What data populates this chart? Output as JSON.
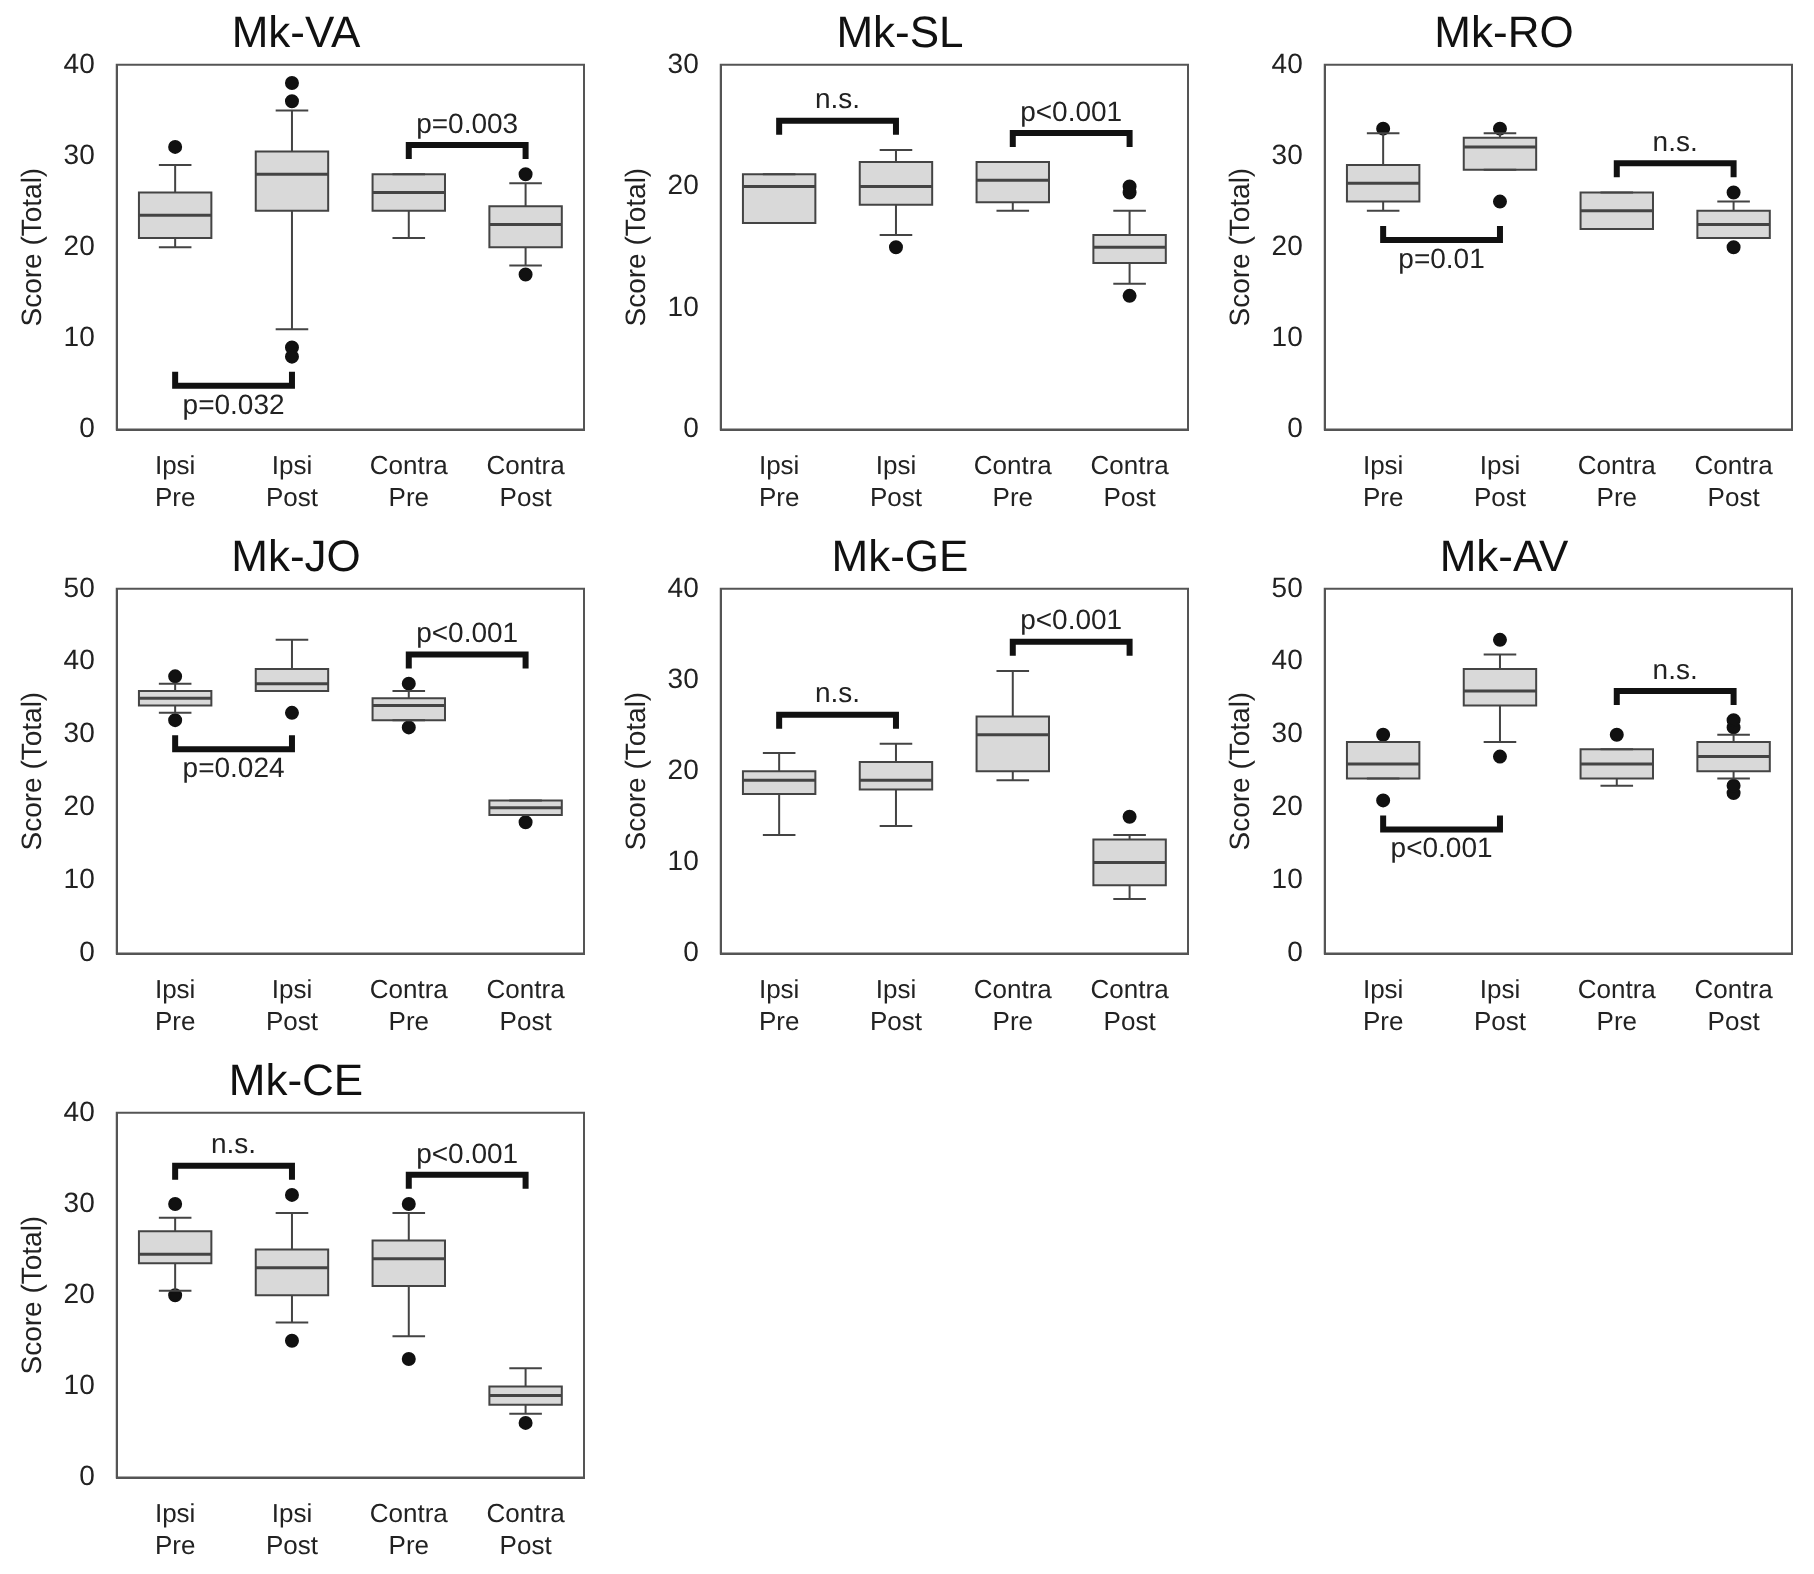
{
  "chart_data": [
    {
      "type": "box",
      "title": "Mk-VA",
      "ylabel": "Score (Total)",
      "categories": [
        "Ipsi Pre",
        "Ipsi Post",
        "Contra Pre",
        "Contra Post"
      ],
      "ylim": [
        0,
        40
      ],
      "yticks": [
        0,
        10,
        20,
        30,
        40
      ],
      "grid": false,
      "legend": false,
      "series": [
        {
          "color": "#d9d9d9",
          "boxes": [
            {
              "low": 20,
              "q1": 21,
              "median": 23.5,
              "q3": 26,
              "high": 29,
              "outliers": [
                31
              ]
            },
            {
              "low": 11,
              "q1": 24,
              "median": 28,
              "q3": 30.5,
              "high": 35,
              "outliers": [
                36,
                38,
                9,
                8
              ]
            },
            {
              "low": 21,
              "q1": 24,
              "median": 26,
              "q3": 28,
              "high": 28
            },
            {
              "low": 18,
              "q1": 20,
              "median": 22.5,
              "q3": 24.5,
              "high": 27,
              "outliers": [
                28,
                17
              ]
            }
          ]
        }
      ],
      "annotations": [
        "p=0.032",
        "p=0.003"
      ]
    },
    {
      "type": "box",
      "title": "Mk-SL",
      "ylabel": "Score (Total)",
      "categories": [
        "Ipsi Pre",
        "Ipsi Post",
        "Contra Pre",
        "Contra Post"
      ],
      "ylim": [
        0,
        30
      ],
      "yticks": [
        0,
        10,
        20,
        30
      ],
      "grid": false,
      "legend": false,
      "series": [
        {
          "color": "#d9d9d9",
          "boxes": [
            {
              "low": 17,
              "q1": 17,
              "median": 20,
              "q3": 21,
              "high": 21
            },
            {
              "low": 16,
              "q1": 18.5,
              "median": 20,
              "q3": 22,
              "high": 23,
              "outliers": [
                15
              ]
            },
            {
              "low": 18,
              "q1": 18.7,
              "median": 20.5,
              "q3": 22,
              "high": 22
            },
            {
              "low": 12,
              "q1": 13.7,
              "median": 15,
              "q3": 16,
              "high": 18,
              "outliers": [
                19.5,
                20,
                11
              ]
            }
          ]
        }
      ],
      "annotations": [
        "n.s.",
        "p<0.001"
      ]
    },
    {
      "type": "box",
      "title": "Mk-RO",
      "ylabel": "Score (Total)",
      "categories": [
        "Ipsi Pre",
        "Ipsi Post",
        "Contra Pre",
        "Contra Post"
      ],
      "ylim": [
        0,
        40
      ],
      "yticks": [
        0,
        10,
        20,
        30,
        40
      ],
      "grid": false,
      "legend": false,
      "series": [
        {
          "color": "#d9d9d9",
          "boxes": [
            {
              "low": 24,
              "q1": 25,
              "median": 27,
              "q3": 29,
              "high": 32.5,
              "outliers": [
                33
              ]
            },
            {
              "low": 28.5,
              "q1": 28.5,
              "median": 31,
              "q3": 32,
              "high": 32.5,
              "outliers": [
                33,
                25
              ]
            },
            {
              "low": 22,
              "q1": 22,
              "median": 24,
              "q3": 26,
              "high": 26
            },
            {
              "low": 21,
              "q1": 21,
              "median": 22.5,
              "q3": 24,
              "high": 25,
              "outliers": [
                26,
                20
              ]
            }
          ]
        }
      ],
      "annotations": [
        "p=0.01",
        "n.s."
      ]
    },
    {
      "type": "box",
      "title": "Mk-JO",
      "ylabel": "Score (Total)",
      "categories": [
        "Ipsi Pre",
        "Ipsi Post",
        "Contra Pre",
        "Contra Post"
      ],
      "ylim": [
        0,
        50
      ],
      "yticks": [
        0,
        10,
        20,
        30,
        40,
        50
      ],
      "grid": false,
      "legend": false,
      "series": [
        {
          "color": "#d9d9d9",
          "boxes": [
            {
              "low": 33,
              "q1": 34,
              "median": 35,
              "q3": 36,
              "high": 37,
              "outliers": [
                38,
                32
              ]
            },
            {
              "low": 36,
              "q1": 36,
              "median": 37,
              "q3": 39,
              "high": 43,
              "outliers": [
                33
              ]
            },
            {
              "low": 32,
              "q1": 32,
              "median": 34,
              "q3": 35,
              "high": 36,
              "outliers": [
                37,
                31
              ]
            },
            {
              "low": 19,
              "q1": 19,
              "median": 20,
              "q3": 21,
              "high": 21,
              "outliers": [
                18
              ]
            }
          ]
        }
      ],
      "annotations": [
        "p=0.024",
        "p<0.001"
      ]
    },
    {
      "type": "box",
      "title": "Mk-GE",
      "ylabel": "Score (Total)",
      "categories": [
        "Ipsi Pre",
        "Ipsi Post",
        "Contra Pre",
        "Contra Post"
      ],
      "ylim": [
        0,
        40
      ],
      "yticks": [
        0,
        10,
        20,
        30,
        40
      ],
      "grid": false,
      "legend": false,
      "series": [
        {
          "color": "#d9d9d9",
          "boxes": [
            {
              "low": 13,
              "q1": 17.5,
              "median": 19,
              "q3": 20,
              "high": 22
            },
            {
              "low": 14,
              "q1": 18,
              "median": 19,
              "q3": 21,
              "high": 23
            },
            {
              "low": 19,
              "q1": 20,
              "median": 24,
              "q3": 26,
              "high": 31
            },
            {
              "low": 6,
              "q1": 7.5,
              "median": 10,
              "q3": 12.5,
              "high": 13,
              "outliers": [
                15
              ]
            }
          ]
        }
      ],
      "annotations": [
        "n.s.",
        "p<0.001"
      ]
    },
    {
      "type": "box",
      "title": "Mk-AV",
      "ylabel": "Score (Total)",
      "categories": [
        "Ipsi Pre",
        "Ipsi Post",
        "Contra Pre",
        "Contra Post"
      ],
      "ylim": [
        0,
        50
      ],
      "yticks": [
        0,
        10,
        20,
        30,
        40,
        50
      ],
      "grid": false,
      "legend": false,
      "series": [
        {
          "color": "#d9d9d9",
          "boxes": [
            {
              "low": 24,
              "q1": 24,
              "median": 26,
              "q3": 29,
              "high": 29,
              "outliers": [
                30,
                21
              ]
            },
            {
              "low": 29,
              "q1": 34,
              "median": 36,
              "q3": 39,
              "high": 41,
              "outliers": [
                43,
                27
              ]
            },
            {
              "low": 23,
              "q1": 24,
              "median": 26,
              "q3": 28,
              "high": 28,
              "outliers": [
                30
              ]
            },
            {
              "low": 24,
              "q1": 25,
              "median": 27,
              "q3": 29,
              "high": 30,
              "outliers": [
                31,
                32,
                22,
                23
              ]
            }
          ]
        }
      ],
      "annotations": [
        "p<0.001",
        "n.s."
      ]
    },
    {
      "type": "box",
      "title": "Mk-CE",
      "ylabel": "Score (Total)",
      "categories": [
        "Ipsi Pre",
        "Ipsi Post",
        "Contra Pre",
        "Contra Post"
      ],
      "ylim": [
        0,
        40
      ],
      "yticks": [
        0,
        10,
        20,
        30,
        40
      ],
      "grid": false,
      "legend": false,
      "series": [
        {
          "color": "#d9d9d9",
          "boxes": [
            {
              "low": 20.5,
              "q1": 23.5,
              "median": 24.5,
              "q3": 27,
              "high": 28.5,
              "outliers": [
                30,
                20
              ]
            },
            {
              "low": 17,
              "q1": 20,
              "median": 23,
              "q3": 25,
              "high": 29,
              "outliers": [
                31,
                15
              ]
            },
            {
              "low": 15.5,
              "q1": 21,
              "median": 24,
              "q3": 26,
              "high": 29,
              "outliers": [
                30,
                13
              ]
            },
            {
              "low": 7,
              "q1": 8,
              "median": 9,
              "q3": 10,
              "high": 12,
              "outliers": [
                6
              ]
            }
          ]
        }
      ],
      "annotations": [
        "n.s.",
        "p<0.001"
      ]
    }
  ]
}
